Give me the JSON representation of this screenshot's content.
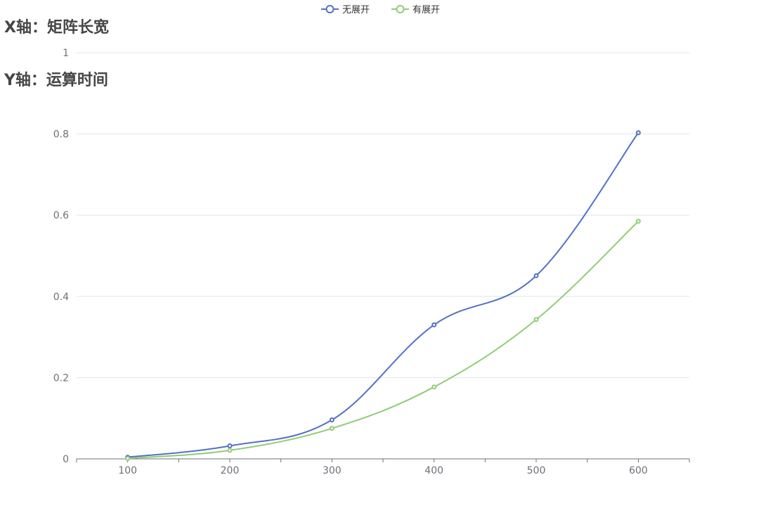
{
  "chart_data": {
    "type": "line",
    "title_lines": [
      "X轴：矩阵长宽",
      "Y轴：运算时间"
    ],
    "categories": [
      "100",
      "200",
      "300",
      "400",
      "500",
      "600"
    ],
    "x": [
      100,
      200,
      300,
      400,
      500,
      600
    ],
    "xlim": [
      50,
      650
    ],
    "ylim": [
      0,
      1
    ],
    "yticks": [
      "0",
      "0.2",
      "0.4",
      "0.6",
      "0.8",
      "1"
    ],
    "ytick_values": [
      0,
      0.2,
      0.4,
      0.6,
      0.8,
      1
    ],
    "grid": true,
    "smooth": true,
    "legend_position": "top-center",
    "series": [
      {
        "name": "无展开",
        "color": "#5470c6",
        "values": [
          0.004,
          0.032,
          0.096,
          0.33,
          0.451,
          0.803
        ]
      },
      {
        "name": "有展开",
        "color": "#91cc75",
        "values": [
          0.001,
          0.021,
          0.075,
          0.177,
          0.343,
          0.585
        ]
      }
    ]
  }
}
